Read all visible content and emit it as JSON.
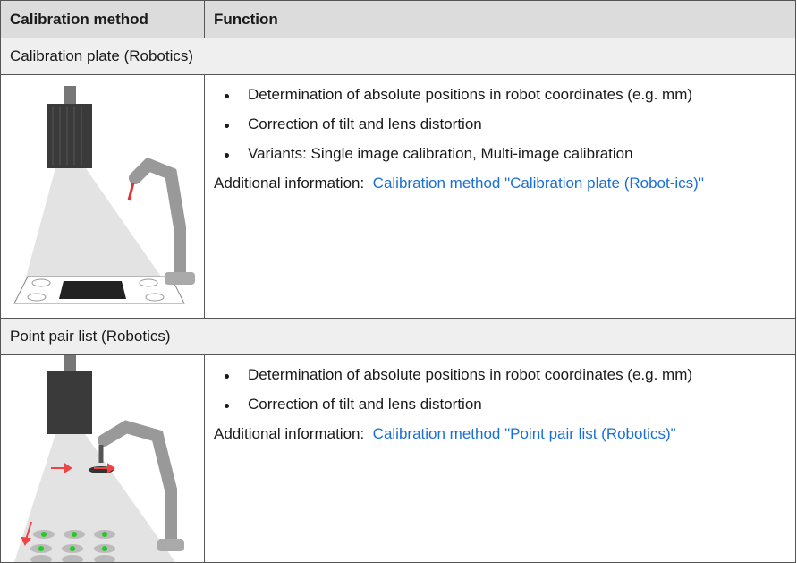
{
  "table": {
    "header": [
      "Calibration method",
      "Function"
    ],
    "sections": [
      {
        "title": "Calibration plate (Robotics)",
        "bullets": [
          "Determination of absolute positions in robot coordinates (e.g. mm)",
          "Correction of tilt and lens distortion",
          "Variants: Single image calibration, Multi-image calibration"
        ],
        "info_label": "Additional information:",
        "info_link": "Calibration method \"Calibration plate (Robot-ics)\""
      },
      {
        "title": "Point pair list (Robotics)",
        "bullets": [
          "Determination of absolute positions in robot coordinates (e.g. mm)",
          "Correction of tilt and lens distortion"
        ],
        "info_label": "Additional information:",
        "info_link": "Calibration method \"Point pair list (Robotics)\""
      }
    ]
  }
}
